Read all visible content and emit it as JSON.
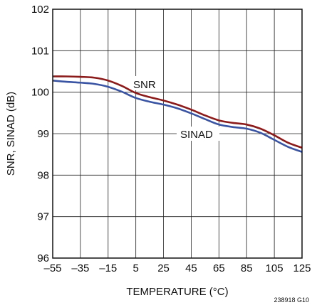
{
  "chart_data": {
    "type": "line",
    "xlabel": "TEMPERATURE (°C)",
    "ylabel": "SNR, SINAD (dB)",
    "figure_id": "238918 G10",
    "xlim": [
      -55,
      125
    ],
    "ylim": [
      96,
      102
    ],
    "x_ticks": [
      -55,
      -35,
      -15,
      5,
      25,
      45,
      65,
      85,
      105,
      125
    ],
    "x_tick_labels": [
      "–55",
      "–35",
      "–15",
      "5",
      "25",
      "45",
      "65",
      "85",
      "105",
      "125"
    ],
    "y_ticks": [
      96,
      97,
      98,
      99,
      100,
      101,
      102
    ],
    "y_tick_labels": [
      "96",
      "97",
      "98",
      "99",
      "100",
      "101",
      "102"
    ],
    "grid": true,
    "series": [
      {
        "name": "SNR",
        "color": "#8b1a1a",
        "x": [
          -55,
          -45,
          -35,
          -25,
          -15,
          -5,
          5,
          15,
          25,
          35,
          45,
          55,
          65,
          75,
          85,
          95,
          105,
          115,
          125
        ],
        "y": [
          100.38,
          100.38,
          100.37,
          100.35,
          100.28,
          100.15,
          99.98,
          99.88,
          99.8,
          99.7,
          99.58,
          99.44,
          99.32,
          99.26,
          99.22,
          99.12,
          98.96,
          98.78,
          98.66
        ]
      },
      {
        "name": "SINAD",
        "color": "#3a54a4",
        "x": [
          -55,
          -45,
          -35,
          -25,
          -15,
          -5,
          5,
          15,
          25,
          35,
          45,
          55,
          65,
          75,
          85,
          95,
          105,
          115,
          125
        ],
        "y": [
          100.28,
          100.25,
          100.23,
          100.2,
          100.13,
          100.01,
          99.86,
          99.77,
          99.7,
          99.61,
          99.49,
          99.35,
          99.22,
          99.16,
          99.12,
          99.02,
          98.85,
          98.68,
          98.56
        ]
      }
    ]
  }
}
